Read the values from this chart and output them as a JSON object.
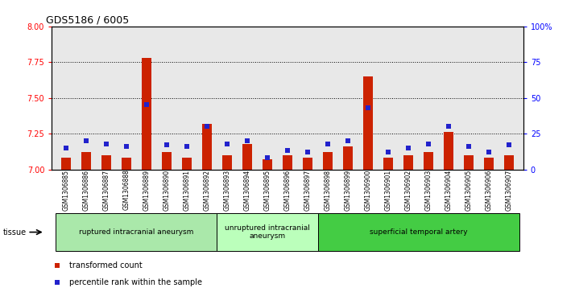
{
  "title": "GDS5186 / 6005",
  "samples": [
    "GSM1306885",
    "GSM1306886",
    "GSM1306887",
    "GSM1306888",
    "GSM1306889",
    "GSM1306890",
    "GSM1306891",
    "GSM1306892",
    "GSM1306893",
    "GSM1306894",
    "GSM1306895",
    "GSM1306896",
    "GSM1306897",
    "GSM1306898",
    "GSM1306899",
    "GSM1306900",
    "GSM1306901",
    "GSM1306902",
    "GSM1306903",
    "GSM1306904",
    "GSM1306905",
    "GSM1306906",
    "GSM1306907"
  ],
  "red_values": [
    7.08,
    7.12,
    7.1,
    7.08,
    7.78,
    7.12,
    7.08,
    7.32,
    7.1,
    7.18,
    7.07,
    7.1,
    7.08,
    7.12,
    7.16,
    7.65,
    7.08,
    7.1,
    7.12,
    7.26,
    7.1,
    7.08,
    7.1
  ],
  "blue_values": [
    15,
    20,
    18,
    16,
    45,
    17,
    16,
    30,
    18,
    20,
    8,
    13,
    12,
    18,
    20,
    43,
    12,
    15,
    18,
    30,
    16,
    12,
    17
  ],
  "ylim_left": [
    7.0,
    8.0
  ],
  "ylim_right": [
    0,
    100
  ],
  "yticks_left": [
    7.0,
    7.25,
    7.5,
    7.75,
    8.0
  ],
  "yticks_right": [
    0,
    25,
    50,
    75,
    100
  ],
  "group_starts": [
    0,
    8,
    13
  ],
  "group_ends": [
    8,
    13,
    23
  ],
  "group_labels": [
    "ruptured intracranial aneurysm",
    "unruptured intracranial\naneurysm",
    "superficial temporal artery"
  ],
  "group_colors": [
    "#aae8aa",
    "#bbffbb",
    "#44cc44"
  ],
  "bar_color": "#CC2200",
  "marker_color": "#2222CC",
  "background_color": "#E8E8E8",
  "grid_color": "#000000",
  "tissue_label": "tissue",
  "legend_items": [
    "transformed count",
    "percentile rank within the sample"
  ]
}
